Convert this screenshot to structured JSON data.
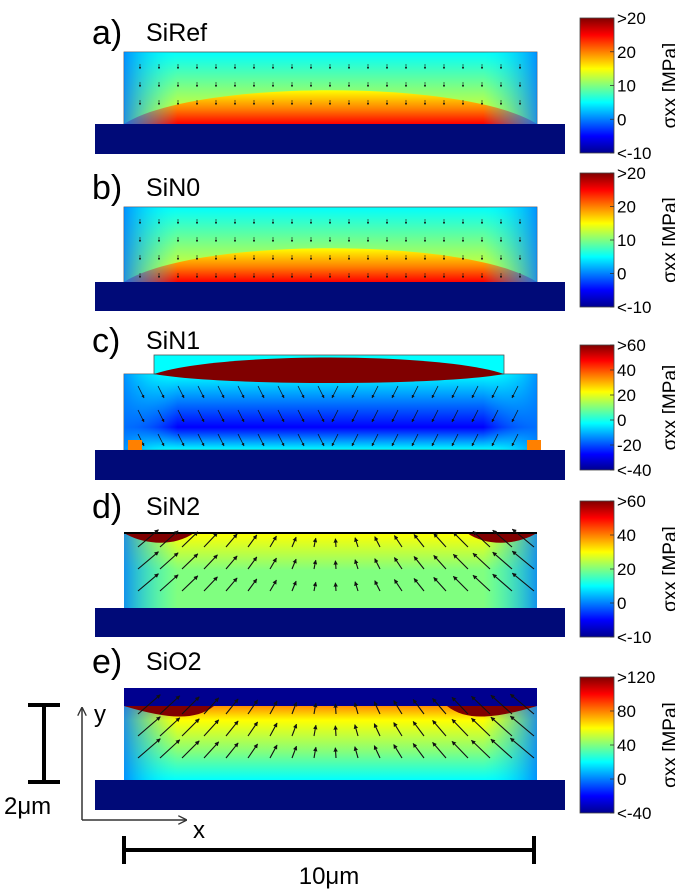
{
  "colors": {
    "jet": [
      "#00008f",
      "#0000ff",
      "#0080ff",
      "#00ffff",
      "#80ff80",
      "#ffff00",
      "#ff8000",
      "#ff0000",
      "#800000"
    ],
    "substrate": "#000a78",
    "arrow": "#111111"
  },
  "panels": [
    {
      "letter": "a)",
      "name": "SiRef",
      "colorbar": {
        "ticks": [
          ">20",
          "20",
          "10",
          "0",
          "<-10"
        ],
        "label": "σxx [MPa]"
      },
      "map": "cap"
    },
    {
      "letter": "b)",
      "name": "SiN0",
      "colorbar": {
        "ticks": [
          ">20",
          "20",
          "10",
          "0",
          "<-10"
        ],
        "label": "σxx [MPa]"
      },
      "map": "cap"
    },
    {
      "letter": "c)",
      "name": "SiN1",
      "colorbar": {
        "ticks": [
          ">60",
          "40",
          "20",
          "0",
          "-20",
          "<-40"
        ],
        "label": "σxx [MPa]"
      },
      "map": "film"
    },
    {
      "letter": "d)",
      "name": "SiN2",
      "colorbar": {
        "ticks": [
          ">60",
          "40",
          "20",
          "0",
          "<-10"
        ],
        "label": "σxx [MPa]"
      },
      "map": "hot"
    },
    {
      "letter": "e)",
      "name": "SiO2",
      "colorbar": {
        "ticks": [
          ">120",
          "80",
          "40",
          "0",
          "<-40"
        ],
        "label": "σxx [MPa]"
      },
      "map": "oxide"
    }
  ],
  "scalebars": {
    "vertical": "2μm",
    "horizontal": "10μm"
  },
  "axes": {
    "x": "x",
    "y": "y"
  }
}
